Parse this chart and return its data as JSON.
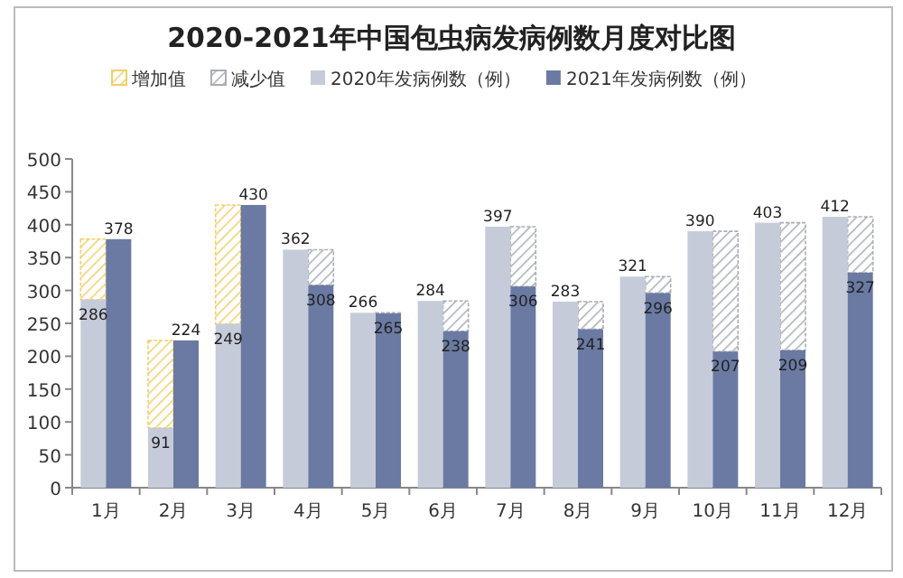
{
  "chart_data": {
    "type": "bar",
    "title": "2020-2021年中国包虫病发病例数月度对比图",
    "categories": [
      "1月",
      "2月",
      "3月",
      "4月",
      "5月",
      "6月",
      "7月",
      "8月",
      "9月",
      "10月",
      "11月",
      "12月"
    ],
    "series": [
      {
        "name": "增加值",
        "color": "#f2cf6a",
        "base": [
          286,
          91,
          249,
          null,
          null,
          null,
          null,
          null,
          null,
          null,
          null,
          null
        ],
        "values": [
          92,
          133,
          181,
          null,
          null,
          null,
          null,
          null,
          null,
          null,
          null,
          null
        ]
      },
      {
        "name": "减少值",
        "color": "#a9adb6",
        "base": [
          null,
          null,
          null,
          308,
          265,
          238,
          306,
          241,
          296,
          207,
          209,
          327
        ],
        "values": [
          null,
          null,
          null,
          54,
          1,
          46,
          91,
          42,
          25,
          183,
          194,
          85
        ]
      },
      {
        "name": "2020年发病例数（例）",
        "color": "#c5cbd9",
        "values": [
          286,
          91,
          249,
          362,
          266,
          284,
          397,
          283,
          321,
          390,
          403,
          412
        ],
        "value_labels": [
          "286",
          "91",
          "249",
          "362",
          "266",
          "284",
          "397",
          "283",
          "321",
          "390",
          "403",
          "412"
        ]
      },
      {
        "name": "2021年发病例数（例）",
        "color": "#6a7aa3",
        "values": [
          378,
          224,
          430,
          308,
          265,
          238,
          306,
          241,
          296,
          207,
          209,
          327
        ],
        "value_labels": [
          "378",
          "224",
          "430",
          "308",
          "265",
          "238",
          "306",
          "241",
          "296",
          "207",
          "209",
          "327"
        ]
      }
    ],
    "ylim": [
      0,
      500
    ],
    "yticks": [
      0,
      50,
      100,
      150,
      200,
      250,
      300,
      350,
      400,
      450,
      500
    ],
    "legend": "top",
    "grid": false
  }
}
